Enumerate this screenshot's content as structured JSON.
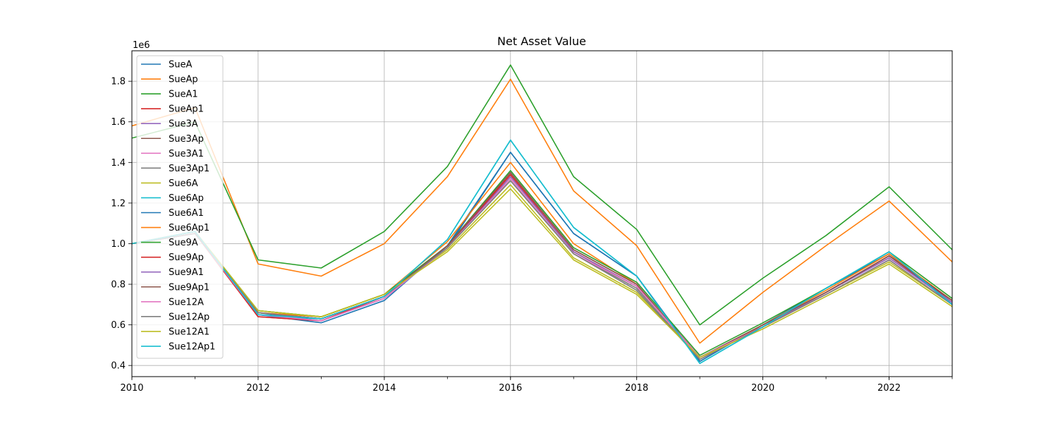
{
  "chart_data": {
    "type": "line",
    "title": "Net Asset Value",
    "xlabel": "",
    "ylabel": "",
    "y_offset_label": "1e6",
    "xlim": [
      2010,
      2023
    ],
    "ylim": [
      0.345,
      1.95
    ],
    "x_ticks": [
      2010,
      2012,
      2014,
      2016,
      2018,
      2020,
      2022
    ],
    "x_tick_labels": [
      "2010",
      "2012",
      "2014",
      "2016",
      "2018",
      "2020",
      "2022"
    ],
    "y_ticks": [
      0.4,
      0.6,
      0.8,
      1.0,
      1.2,
      1.4,
      1.6,
      1.8
    ],
    "y_tick_labels": [
      "0.4",
      "0.6",
      "0.8",
      "1.0",
      "1.2",
      "1.4",
      "1.6",
      "1.8"
    ],
    "grid": true,
    "legend_position": "upper-left",
    "x": [
      2010,
      2011,
      2012,
      2013,
      2014,
      2015,
      2016,
      2017,
      2018,
      2019,
      2020,
      2021,
      2022,
      2023
    ],
    "series": [
      {
        "name": "SueA",
        "color": "#1f77b4",
        "values": [
          1.0,
          1.05,
          0.66,
          0.62,
          0.73,
          0.98,
          1.45,
          1.05,
          0.84,
          0.42,
          0.6,
          0.78,
          0.95,
          0.71
        ]
      },
      {
        "name": "SueAp",
        "color": "#ff7f0e",
        "values": [
          1.58,
          1.67,
          0.9,
          0.84,
          1.0,
          1.33,
          1.81,
          1.26,
          0.99,
          0.51,
          0.76,
          0.99,
          1.21,
          0.91
        ]
      },
      {
        "name": "SueA1",
        "color": "#2ca02c",
        "values": [
          1.52,
          1.6,
          0.92,
          0.88,
          1.06,
          1.38,
          1.88,
          1.33,
          1.07,
          0.6,
          0.83,
          1.04,
          1.28,
          0.97
        ]
      },
      {
        "name": "SueAp1",
        "color": "#d62728",
        "values": [
          1.0,
          1.06,
          0.64,
          0.62,
          0.74,
          0.99,
          1.34,
          0.96,
          0.79,
          0.44,
          0.59,
          0.76,
          0.94,
          0.71
        ]
      },
      {
        "name": "Sue3A",
        "color": "#9467bd",
        "values": [
          1.0,
          1.05,
          0.66,
          0.63,
          0.74,
          0.99,
          1.33,
          0.96,
          0.79,
          0.44,
          0.6,
          0.76,
          0.93,
          0.71
        ]
      },
      {
        "name": "Sue3Ap",
        "color": "#8c564b",
        "values": [
          1.0,
          1.06,
          0.66,
          0.63,
          0.74,
          0.99,
          1.35,
          0.97,
          0.8,
          0.44,
          0.6,
          0.76,
          0.94,
          0.72
        ]
      },
      {
        "name": "Sue3A1",
        "color": "#e377c2",
        "values": [
          1.0,
          1.05,
          0.65,
          0.62,
          0.73,
          0.98,
          1.33,
          0.96,
          0.79,
          0.44,
          0.59,
          0.76,
          0.93,
          0.71
        ]
      },
      {
        "name": "Sue3Ap1",
        "color": "#7f7f7f",
        "values": [
          1.0,
          1.05,
          0.66,
          0.63,
          0.74,
          0.99,
          1.31,
          0.95,
          0.78,
          0.43,
          0.59,
          0.75,
          0.92,
          0.7
        ]
      },
      {
        "name": "Sue6A",
        "color": "#bcbd22",
        "values": [
          1.0,
          1.06,
          0.67,
          0.64,
          0.75,
          0.97,
          1.29,
          0.93,
          0.76,
          0.44,
          0.59,
          0.75,
          0.91,
          0.7
        ]
      },
      {
        "name": "Sue6Ap",
        "color": "#17becf",
        "values": [
          1.0,
          1.06,
          0.65,
          0.63,
          0.74,
          1.02,
          1.51,
          1.08,
          0.84,
          0.41,
          0.59,
          0.78,
          0.96,
          0.7
        ]
      },
      {
        "name": "Sue6A1",
        "color": "#1f77b4",
        "values": [
          1.0,
          1.05,
          0.65,
          0.61,
          0.72,
          0.99,
          1.45,
          1.05,
          0.84,
          0.42,
          0.6,
          0.78,
          0.95,
          0.7
        ]
      },
      {
        "name": "Sue6Ap1",
        "color": "#ff7f0e",
        "values": [
          1.0,
          1.06,
          0.66,
          0.64,
          0.75,
          1.01,
          1.4,
          1.0,
          0.8,
          0.43,
          0.6,
          0.77,
          0.95,
          0.72
        ]
      },
      {
        "name": "Sue9A",
        "color": "#2ca02c",
        "values": [
          1.0,
          1.06,
          0.67,
          0.64,
          0.75,
          0.99,
          1.36,
          0.98,
          0.81,
          0.45,
          0.61,
          0.78,
          0.96,
          0.73
        ]
      },
      {
        "name": "Sue9Ap",
        "color": "#d62728",
        "values": [
          1.0,
          1.05,
          0.64,
          0.62,
          0.74,
          0.98,
          1.34,
          0.96,
          0.79,
          0.44,
          0.59,
          0.76,
          0.94,
          0.72
        ]
      },
      {
        "name": "Sue9A1",
        "color": "#9467bd",
        "values": [
          1.0,
          1.05,
          0.66,
          0.63,
          0.74,
          0.98,
          1.33,
          0.96,
          0.79,
          0.44,
          0.59,
          0.76,
          0.93,
          0.71
        ]
      },
      {
        "name": "Sue9Ap1",
        "color": "#8c564b",
        "values": [
          1.0,
          1.06,
          0.66,
          0.63,
          0.74,
          0.99,
          1.35,
          0.97,
          0.8,
          0.44,
          0.6,
          0.76,
          0.94,
          0.72
        ]
      },
      {
        "name": "Sue12A",
        "color": "#e377c2",
        "values": [
          1.0,
          1.05,
          0.65,
          0.62,
          0.73,
          0.98,
          1.32,
          0.95,
          0.79,
          0.44,
          0.59,
          0.75,
          0.92,
          0.7
        ]
      },
      {
        "name": "Sue12Ap",
        "color": "#7f7f7f",
        "values": [
          1.0,
          1.05,
          0.66,
          0.63,
          0.74,
          0.98,
          1.31,
          0.95,
          0.77,
          0.43,
          0.59,
          0.75,
          0.92,
          0.7
        ]
      },
      {
        "name": "Sue12A1",
        "color": "#bcbd22",
        "values": [
          1.0,
          1.06,
          0.67,
          0.64,
          0.75,
          0.96,
          1.27,
          0.92,
          0.75,
          0.44,
          0.58,
          0.74,
          0.9,
          0.69
        ]
      },
      {
        "name": "Sue12Ap1",
        "color": "#17becf",
        "values": [
          1.0,
          1.06,
          0.65,
          0.63,
          0.74,
          1.02,
          1.51,
          1.08,
          0.84,
          0.41,
          0.59,
          0.78,
          0.96,
          0.7
        ]
      }
    ]
  }
}
